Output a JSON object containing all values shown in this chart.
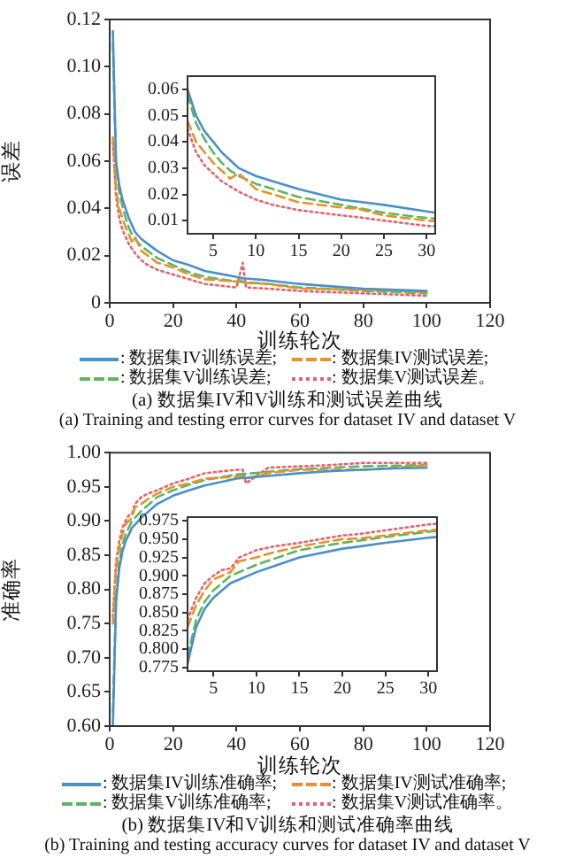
{
  "chart_data": [
    {
      "type": "line",
      "title": "(a) 数据集IV和V训练和测试误差曲线",
      "subtitle": "(a) Training and testing error curves for dataset IV and dataset V",
      "xlabel": "训练轮次",
      "ylabel": "误差",
      "legend": "bottom",
      "grid": false,
      "marker": "none",
      "xlim": [
        0,
        120
      ],
      "xticks": [
        0,
        20,
        40,
        60,
        80,
        100,
        120
      ],
      "ylim": [
        0,
        0.12
      ],
      "yticks": [
        0,
        0.02,
        0.04,
        0.06,
        0.08,
        {
          "value": 0.1,
          "label": "0.10"
        },
        0.12
      ],
      "x": [
        1,
        2,
        3,
        4,
        5,
        6,
        7,
        8,
        10,
        12,
        15,
        20,
        25,
        30,
        40,
        42,
        43,
        50,
        60,
        70,
        80,
        90,
        100
      ],
      "series": [
        {
          "name": ": 数据集IV训练误差;",
          "color": "#4a90c8",
          "line_style": "solid",
          "values": [
            0.115,
            0.06,
            0.05,
            0.044,
            0.04,
            0.036,
            0.033,
            0.03,
            0.027,
            0.025,
            0.022,
            0.018,
            0.016,
            0.0135,
            0.011,
            0.0105,
            0.0103,
            0.0095,
            0.008,
            0.007,
            0.006,
            0.0055,
            0.005
          ]
        },
        {
          "name": ": 数据集IV测试误差;",
          "color": "#e8912c",
          "line_style": "dashed",
          "values": [
            0.07,
            0.048,
            0.04,
            0.036,
            0.032,
            0.029,
            0.026,
            0.028,
            0.022,
            0.02,
            0.017,
            0.015,
            0.012,
            0.01,
            0.009,
            0.0098,
            0.0085,
            0.008,
            0.006,
            0.0058,
            0.0055,
            0.005,
            0.0045
          ]
        },
        {
          "name": ": 数据集V训练误差;",
          "color": "#5cb85c",
          "line_style": "dashed",
          "values": [
            0.11,
            0.058,
            0.047,
            0.041,
            0.036,
            0.032,
            0.029,
            0.027,
            0.024,
            0.022,
            0.019,
            0.016,
            0.013,
            0.011,
            0.009,
            0.0088,
            0.0087,
            0.008,
            0.0065,
            0.0058,
            0.005,
            0.0045,
            0.004
          ]
        },
        {
          "name": ": 数据集V测试误差。",
          "color": "#e8606a",
          "line_style": "dotted",
          "values": [
            0.068,
            0.045,
            0.036,
            0.031,
            0.028,
            0.025,
            0.023,
            0.021,
            0.018,
            0.016,
            0.014,
            0.012,
            0.01,
            0.008,
            0.0065,
            0.017,
            0.0065,
            0.006,
            0.005,
            0.0045,
            0.004,
            0.0035,
            0.003
          ]
        }
      ]
    },
    {
      "type": "line",
      "grid": false,
      "marker": "none",
      "xlim": [
        2,
        31
      ],
      "xticks": [
        5,
        10,
        15,
        20,
        25,
        30
      ],
      "ylim": [
        0.005,
        0.065
      ],
      "yticks": [
        0.01,
        0.02,
        0.03,
        0.04,
        0.05,
        0.06
      ],
      "x": [
        2,
        3,
        4,
        5,
        6,
        7,
        8,
        10,
        12,
        15,
        20,
        22,
        25,
        30,
        31
      ],
      "series": [
        {
          "color": "#4a90c8",
          "line_style": "solid",
          "values": [
            0.06,
            0.05,
            0.044,
            0.04,
            0.036,
            0.033,
            0.03,
            0.027,
            0.025,
            0.022,
            0.018,
            0.0172,
            0.016,
            0.0135,
            0.013
          ]
        },
        {
          "color": "#e8912c",
          "line_style": "dashed",
          "values": [
            0.048,
            0.04,
            0.036,
            0.032,
            0.029,
            0.026,
            0.028,
            0.022,
            0.02,
            0.017,
            0.015,
            0.0145,
            0.012,
            0.01,
            0.0098
          ]
        },
        {
          "color": "#5cb85c",
          "line_style": "dashed",
          "values": [
            0.058,
            0.047,
            0.041,
            0.036,
            0.032,
            0.029,
            0.027,
            0.024,
            0.022,
            0.019,
            0.016,
            0.0148,
            0.013,
            0.011,
            0.0108
          ]
        },
        {
          "color": "#e8606a",
          "line_style": "dotted",
          "values": [
            0.045,
            0.036,
            0.031,
            0.028,
            0.025,
            0.023,
            0.021,
            0.018,
            0.016,
            0.014,
            0.012,
            0.0113,
            0.01,
            0.008,
            0.0079
          ]
        }
      ]
    },
    {
      "type": "line",
      "title": "(b) 数据集IV和V训练和测试准确率曲线",
      "subtitle": "(b) Training and testing accuracy curves for dataset IV and dataset V",
      "xlabel": "训练轮次",
      "ylabel": "准确率",
      "legend": "bottom",
      "grid": false,
      "marker": "none",
      "xlim": [
        0,
        120
      ],
      "xticks": [
        0,
        20,
        40,
        60,
        80,
        100,
        120
      ],
      "ylim": [
        0.6,
        1.0
      ],
      "yticks": [
        {
          "value": 0.6,
          "label": "0.60"
        },
        0.65,
        {
          "value": 0.7,
          "label": "0.70"
        },
        0.75,
        {
          "value": 0.8,
          "label": "0.80"
        },
        0.85,
        {
          "value": 0.9,
          "label": "0.90"
        },
        0.95,
        {
          "value": 1.0,
          "label": "1.00"
        }
      ],
      "x": [
        1,
        2,
        3,
        4,
        5,
        6,
        7,
        8,
        10,
        12,
        15,
        20,
        25,
        30,
        40,
        42,
        43,
        50,
        60,
        70,
        80,
        90,
        100
      ],
      "series": [
        {
          "name": ": 数据集IV训练准确率;",
          "color": "#4a90c8",
          "line_style": "solid",
          "values": [
            0.6,
            0.78,
            0.83,
            0.855,
            0.87,
            0.88,
            0.89,
            0.895,
            0.905,
            0.913,
            0.925,
            0.937,
            0.945,
            0.952,
            0.962,
            0.963,
            0.963,
            0.966,
            0.97,
            0.973,
            0.975,
            0.977,
            0.978
          ]
        },
        {
          "name": ": 数据集IV测试准确率;",
          "color": "#e8912c",
          "line_style": "dashed",
          "values": [
            0.75,
            0.83,
            0.86,
            0.88,
            0.895,
            0.9,
            0.905,
            0.92,
            0.925,
            0.932,
            0.94,
            0.95,
            0.955,
            0.962,
            0.965,
            0.966,
            0.962,
            0.97,
            0.975,
            0.975,
            0.975,
            0.978,
            0.982
          ]
        },
        {
          "name": ": 数据集V训练准确率;",
          "color": "#5cb85c",
          "line_style": "dashed",
          "values": [
            0.62,
            0.79,
            0.84,
            0.865,
            0.88,
            0.89,
            0.9,
            0.905,
            0.915,
            0.923,
            0.935,
            0.945,
            0.953,
            0.96,
            0.968,
            0.969,
            0.969,
            0.972,
            0.976,
            0.978,
            0.98,
            0.981,
            0.982
          ]
        },
        {
          "name": ": 数据集V测试准确率。",
          "color": "#e8606a",
          "line_style": "dotted",
          "values": [
            0.76,
            0.84,
            0.87,
            0.89,
            0.9,
            0.908,
            0.91,
            0.925,
            0.935,
            0.94,
            0.945,
            0.955,
            0.962,
            0.97,
            0.975,
            0.975,
            0.955,
            0.978,
            0.98,
            0.982,
            0.985,
            0.985,
            0.985
          ]
        }
      ]
    },
    {
      "type": "line",
      "grid": false,
      "marker": "none",
      "xlim": [
        2,
        31
      ],
      "xticks": [
        5,
        10,
        15,
        20,
        25,
        30
      ],
      "ylim": [
        0.77,
        0.98
      ],
      "yticks": [
        0.775,
        {
          "value": 0.8,
          "label": "0.800"
        },
        0.825,
        {
          "value": 0.85,
          "label": "0.850"
        },
        0.875,
        {
          "value": 0.9,
          "label": "0.900"
        },
        0.925,
        {
          "value": 0.95,
          "label": "0.950"
        },
        0.975
      ],
      "x": [
        2,
        3,
        4,
        5,
        6,
        7,
        8,
        10,
        12,
        15,
        20,
        22,
        25,
        30,
        31
      ],
      "series": [
        {
          "color": "#4a90c8",
          "line_style": "solid",
          "values": [
            0.78,
            0.83,
            0.855,
            0.87,
            0.88,
            0.89,
            0.895,
            0.905,
            0.913,
            0.925,
            0.937,
            0.94,
            0.945,
            0.952,
            0.953
          ]
        },
        {
          "color": "#e8912c",
          "line_style": "dashed",
          "values": [
            0.83,
            0.86,
            0.88,
            0.895,
            0.9,
            0.905,
            0.92,
            0.925,
            0.932,
            0.94,
            0.95,
            0.951,
            0.955,
            0.962,
            0.963
          ]
        },
        {
          "color": "#5cb85c",
          "line_style": "dashed",
          "values": [
            0.79,
            0.84,
            0.865,
            0.88,
            0.89,
            0.9,
            0.905,
            0.915,
            0.923,
            0.935,
            0.945,
            0.948,
            0.953,
            0.96,
            0.961
          ]
        },
        {
          "color": "#e8606a",
          "line_style": "dotted",
          "values": [
            0.84,
            0.87,
            0.89,
            0.9,
            0.908,
            0.91,
            0.925,
            0.935,
            0.94,
            0.945,
            0.955,
            0.957,
            0.962,
            0.97,
            0.971
          ]
        }
      ]
    }
  ]
}
